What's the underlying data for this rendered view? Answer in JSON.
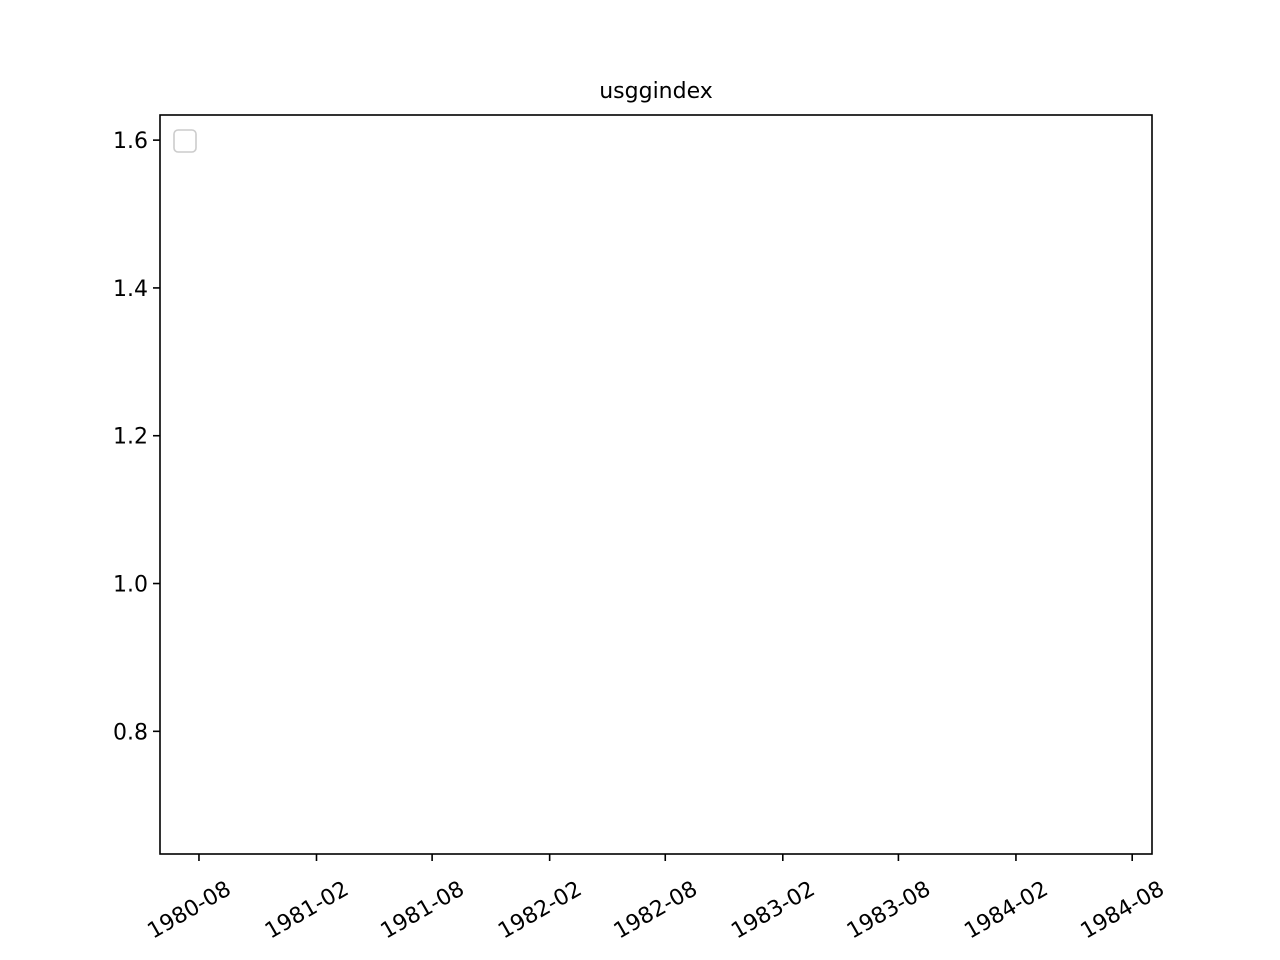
{
  "chart_data": {
    "type": "line",
    "title": "usggindex",
    "xlabel": "",
    "ylabel": "",
    "x_type": "date",
    "xlim": [
      "1980-06-01",
      "1984-09-01"
    ],
    "ylim": [
      0.634,
      1.634
    ],
    "x_ticks": [
      "1980-08",
      "1981-02",
      "1981-08",
      "1982-02",
      "1982-08",
      "1983-02",
      "1983-08",
      "1984-02",
      "1984-08"
    ],
    "y_ticks": [
      "0.8",
      "1.0",
      "1.2",
      "1.4",
      "1.6"
    ],
    "grid": false,
    "legend": {
      "placement": "upper-left",
      "entries": []
    },
    "series": []
  }
}
